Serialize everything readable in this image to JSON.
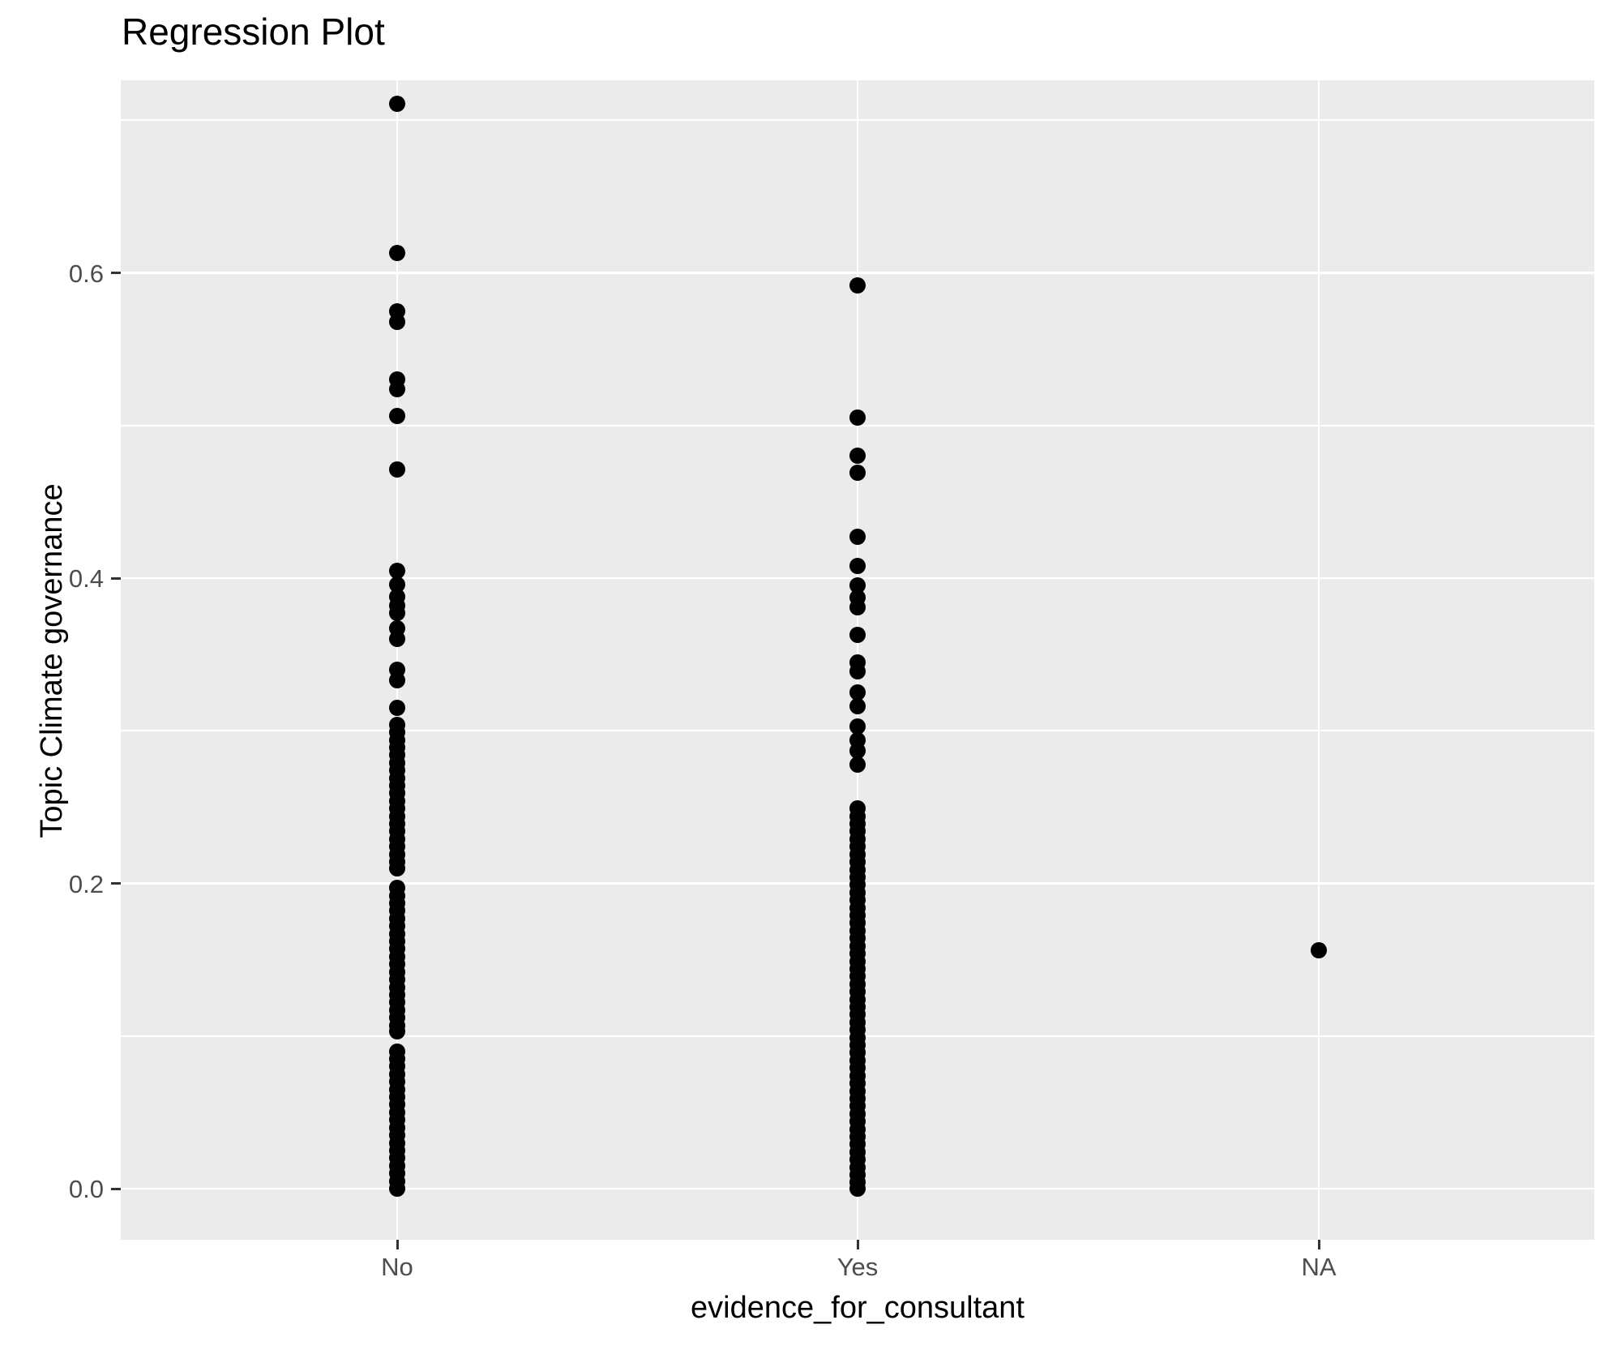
{
  "title": "Regression Plot",
  "axes": {
    "x": {
      "label": "evidence_for_consultant",
      "categories": [
        "No",
        "Yes",
        "NA"
      ]
    },
    "y": {
      "label": "Topic Climate governance",
      "tick_labels": [
        "0.0",
        "0.2",
        "0.4",
        "0.6"
      ]
    }
  },
  "colors": {
    "panel_background": "#EBEBEB",
    "gridline": "#FFFFFF",
    "point": "#000000",
    "tick_label": "#4D4D4D",
    "tick_mark": "#333333",
    "axis_title": "#000000",
    "figure_background": "#FFFFFF"
  },
  "chart_data": {
    "type": "scatter",
    "title": "Regression Plot",
    "xlabel": "evidence_for_consultant",
    "ylabel": "Topic Climate governance",
    "categories": [
      "No",
      "Yes",
      "NA"
    ],
    "ylim": [
      -0.034,
      0.726
    ],
    "y_major_ticks": [
      0.0,
      0.2,
      0.4,
      0.6
    ],
    "y_minor_gridlines": [
      0.1,
      0.3,
      0.5,
      0.7
    ],
    "grid": true,
    "legend_position": "none",
    "point_color": "#000000",
    "series": [
      {
        "name": "No",
        "values": [
          0.711,
          0.613,
          0.575,
          0.568,
          0.53,
          0.524,
          0.506,
          0.471,
          0.405,
          0.396,
          0.388,
          0.382,
          0.377,
          0.367,
          0.36,
          0.34,
          0.333,
          0.315,
          0.304,
          0.299,
          0.294,
          0.289,
          0.284,
          0.279,
          0.274,
          0.269,
          0.264,
          0.259,
          0.254,
          0.249,
          0.244,
          0.239,
          0.234,
          0.229,
          0.224,
          0.219,
          0.214,
          0.21,
          0.197,
          0.192,
          0.187,
          0.182,
          0.177,
          0.172,
          0.167,
          0.162,
          0.157,
          0.152,
          0.147,
          0.142,
          0.137,
          0.132,
          0.127,
          0.122,
          0.117,
          0.112,
          0.107,
          0.103,
          0.09,
          0.085,
          0.08,
          0.075,
          0.07,
          0.065,
          0.06,
          0.055,
          0.05,
          0.045,
          0.04,
          0.035,
          0.03,
          0.025,
          0.02,
          0.015,
          0.01,
          0.005,
          0.0
        ]
      },
      {
        "name": "Yes",
        "values": [
          0.592,
          0.505,
          0.48,
          0.469,
          0.427,
          0.408,
          0.395,
          0.387,
          0.381,
          0.363,
          0.345,
          0.339,
          0.325,
          0.316,
          0.303,
          0.294,
          0.287,
          0.278,
          0.249,
          0.244,
          0.239,
          0.234,
          0.229,
          0.224,
          0.219,
          0.214,
          0.209,
          0.204,
          0.199,
          0.194,
          0.189,
          0.184,
          0.179,
          0.174,
          0.169,
          0.164,
          0.159,
          0.154,
          0.149,
          0.144,
          0.139,
          0.134,
          0.129,
          0.124,
          0.119,
          0.114,
          0.109,
          0.104,
          0.099,
          0.094,
          0.089,
          0.084,
          0.079,
          0.074,
          0.069,
          0.064,
          0.059,
          0.054,
          0.049,
          0.044,
          0.039,
          0.034,
          0.029,
          0.024,
          0.019,
          0.014,
          0.009,
          0.004,
          0.0
        ]
      },
      {
        "name": "NA",
        "values": [
          0.156
        ]
      }
    ]
  }
}
